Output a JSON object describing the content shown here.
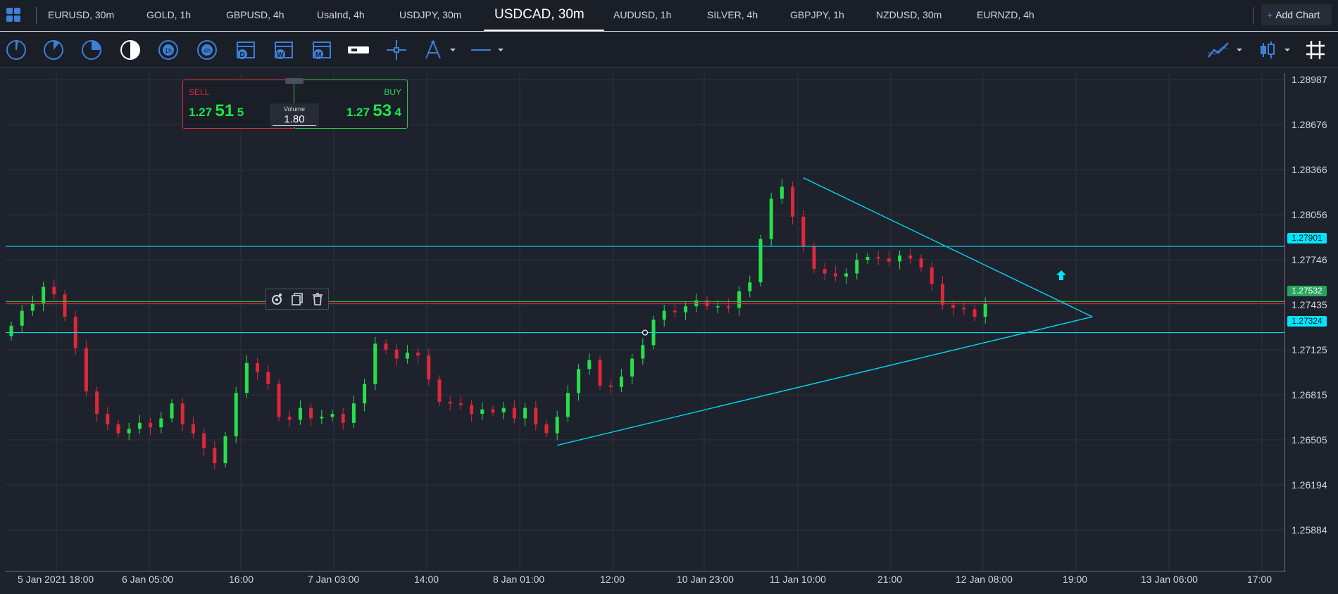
{
  "tabs": [
    {
      "label": "EURUSD, 30m",
      "active": false
    },
    {
      "label": "GOLD, 1h",
      "active": false
    },
    {
      "label": "GBPUSD, 4h",
      "active": false
    },
    {
      "label": "UsaInd, 4h",
      "active": false
    },
    {
      "label": "USDJPY, 30m",
      "active": false
    },
    {
      "label": "USDCAD, 30m",
      "active": true
    },
    {
      "label": "AUDUSD, 1h",
      "active": false
    },
    {
      "label": "SILVER, 4h",
      "active": false
    },
    {
      "label": "GBPJPY, 1h",
      "active": false
    },
    {
      "label": "NZDUSD, 30m",
      "active": false
    },
    {
      "label": "EURNZD, 4h",
      "active": false
    }
  ],
  "add_chart": {
    "icon": "plus",
    "label": "Add Chart"
  },
  "toolbar": {
    "left_tools": [
      "timeframe-1-icon",
      "timeframe-2-icon",
      "timeframe-3-icon",
      "timeframe-4-icon",
      "timeframe-5-icon",
      "timeframe-6-icon",
      "calendar-day-icon",
      "calendar-week-icon",
      "calendar-month-icon",
      "toggle-icon",
      "crosshair-icon",
      "drawing-tool-icon",
      "line-tool-icon"
    ],
    "calendar_letters": [
      "D",
      "W",
      "M"
    ],
    "right_tools": [
      "indicators-icon",
      "candle-type-icon",
      "grid-icon"
    ]
  },
  "trade_panel": {
    "sell_label": "SELL",
    "sell_price": {
      "prefix": "1.27",
      "big": "51",
      "suffix": "5"
    },
    "buy_label": "BUY",
    "buy_price": {
      "prefix": "1.27",
      "big": "53",
      "suffix": "4"
    },
    "volume_label": "Volume",
    "volume_value": "1.80"
  },
  "chart_data": {
    "type": "candlestick",
    "symbol": "USDCAD",
    "timeframe": "30m",
    "y_ticks": [
      "1.28987",
      "1.28676",
      "1.28366",
      "1.28056",
      "1.27746",
      "1.27435",
      "1.27125",
      "1.26815",
      "1.26505",
      "1.26194",
      "1.25884"
    ],
    "x_ticks": [
      "5 Jan 2021 18:00",
      "6 Jan 05:00",
      "16:00",
      "7 Jan 03:00",
      "14:00",
      "8 Jan 01:00",
      "12:00",
      "10 Jan 23:00",
      "11 Jan 10:00",
      "21:00",
      "12 Jan 08:00",
      "19:00",
      "13 Jan 06:00",
      "17:00"
    ],
    "ylim": [
      1.2573,
      1.2906
    ],
    "price_tags": [
      {
        "value": "1.27901",
        "color": "#00e5ff"
      },
      {
        "value": "1.27532",
        "color": "#26a65b"
      },
      {
        "value": "1.27324",
        "color": "#00e5ff"
      }
    ],
    "horizontal_lines": [
      1.27901,
      1.27324
    ],
    "trendlines": [
      {
        "from": [
          74,
          1.2836
        ],
        "to": [
          101,
          1.2743
        ]
      },
      {
        "from": [
          51,
          1.2657
        ],
        "to": [
          101,
          1.2743
        ]
      }
    ],
    "candles_close": [
      1.2737,
      1.2747,
      1.2752,
      1.2763,
      1.2758,
      1.2743,
      1.2722,
      1.2693,
      1.2678,
      1.2671,
      1.2665,
      1.2668,
      1.2672,
      1.2669,
      1.2675,
      1.2685,
      1.2671,
      1.2665,
      1.2655,
      1.2645,
      1.2663,
      1.2692,
      1.2712,
      1.2706,
      1.2698,
      1.2676,
      1.2674,
      1.2682,
      1.2675,
      1.2676,
      1.2678,
      1.2672,
      1.2685,
      1.2698,
      1.2725,
      1.2721,
      1.2715,
      1.2719,
      1.2717,
      1.2701,
      1.2686,
      1.2685,
      1.2684,
      1.2678,
      1.2681,
      1.2679,
      1.2682,
      1.2675,
      1.2682,
      1.2671,
      1.2665,
      1.2676,
      1.2692,
      1.2708,
      1.2714,
      1.2697,
      1.2696,
      1.2703,
      1.2715,
      1.2724,
      1.2741,
      1.2747,
      1.2746,
      1.275,
      1.2754,
      1.275,
      1.275,
      1.2749,
      1.276,
      1.2766,
      1.2795,
      1.2822,
      1.283,
      1.281,
      1.279,
      1.2775,
      1.2772,
      1.277,
      1.2772,
      1.2781,
      1.2783,
      1.2782,
      1.278,
      1.2784,
      1.2782,
      1.2776,
      1.2765,
      1.2751,
      1.2749,
      1.2748,
      1.2743,
      1.2752
    ]
  },
  "markers": {
    "buy_arrow": "up-arrow-icon",
    "object_tools": [
      "settings-icon",
      "copy-icon",
      "delete-icon"
    ]
  }
}
